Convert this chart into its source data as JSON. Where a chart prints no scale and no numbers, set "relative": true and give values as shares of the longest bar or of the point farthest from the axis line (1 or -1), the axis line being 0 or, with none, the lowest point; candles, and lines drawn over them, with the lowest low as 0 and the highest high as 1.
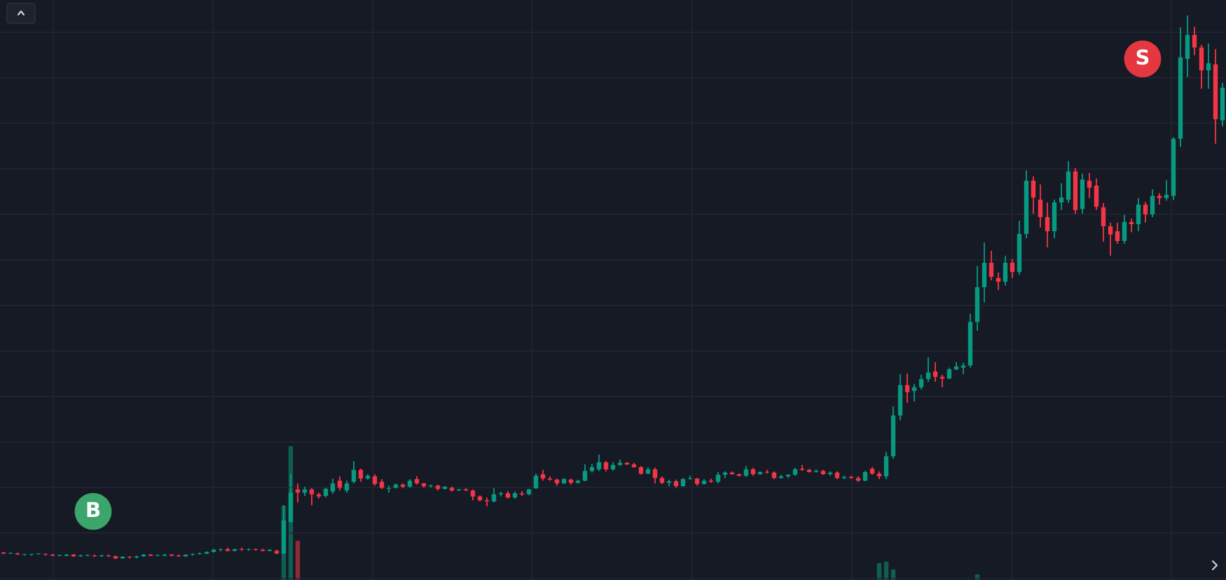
{
  "chart_data": [
    {
      "type": "candlestick",
      "relative": true,
      "grid": true,
      "categories": [
        null,
        null,
        null,
        null,
        null,
        null,
        null,
        null,
        null,
        null,
        null,
        null,
        null,
        null,
        null,
        null,
        null,
        null,
        null,
        null,
        null,
        null,
        null,
        null,
        null,
        null,
        null,
        null,
        null,
        null,
        null,
        null,
        null,
        null,
        null,
        null,
        null,
        null,
        null,
        null,
        null,
        null,
        null,
        null,
        null,
        null,
        null,
        null,
        null,
        null,
        null,
        null,
        null,
        null,
        null,
        null,
        null,
        null,
        null,
        null,
        null,
        null,
        null,
        null,
        null,
        null,
        null,
        null,
        null,
        null,
        null,
        null,
        null,
        null,
        null,
        null,
        null,
        null,
        null,
        null,
        null,
        null,
        null,
        null,
        null,
        null,
        null,
        null,
        null,
        null,
        null,
        null,
        null,
        null,
        null,
        null,
        null,
        null,
        null,
        null,
        null,
        null,
        null,
        null,
        null,
        null,
        null,
        null,
        null,
        null,
        null,
        null,
        null,
        null,
        null,
        null,
        null,
        null,
        null,
        null,
        null,
        null,
        null,
        null,
        null,
        null,
        null,
        null,
        null,
        null,
        null,
        null,
        null,
        null,
        null,
        null,
        null,
        null,
        null,
        null,
        null,
        null,
        null,
        null,
        null,
        null,
        null,
        null,
        null,
        null,
        null,
        null,
        null,
        null,
        null,
        null,
        null,
        null,
        null,
        null,
        null,
        null,
        null,
        null,
        null,
        null,
        null,
        null,
        null,
        null,
        null,
        null,
        null,
        null,
        null
      ],
      "annotations": [
        "B",
        "S"
      ],
      "ohlc": [
        [
          0.012,
          0.013,
          0.009,
          0.01
        ],
        [
          0.01,
          0.012,
          0.009,
          0.01
        ],
        [
          0.01,
          0.012,
          0.008,
          0.008
        ],
        [
          0.008,
          0.009,
          0.006,
          0.008
        ],
        [
          0.008,
          0.009,
          0.006,
          0.009
        ],
        [
          0.009,
          0.01,
          0.008,
          0.009
        ],
        [
          0.009,
          0.01,
          0.006,
          0.008
        ],
        [
          0.008,
          0.009,
          0.005,
          0.006
        ],
        [
          0.006,
          0.008,
          0.005,
          0.006
        ],
        [
          0.006,
          0.009,
          0.005,
          0.008
        ],
        [
          0.008,
          0.009,
          0.004,
          0.005
        ],
        [
          0.005,
          0.008,
          0.004,
          0.006
        ],
        [
          0.006,
          0.008,
          0.005,
          0.006
        ],
        [
          0.006,
          0.008,
          0.004,
          0.005
        ],
        [
          0.005,
          0.008,
          0.004,
          0.006
        ],
        [
          0.006,
          0.008,
          0.004,
          0.005
        ],
        [
          0.005,
          0.006,
          0,
          0.001
        ],
        [
          0.001,
          0.005,
          0.001,
          0.004
        ],
        [
          0.004,
          0.005,
          0.001,
          0.003
        ],
        [
          0.003,
          0.006,
          0.001,
          0.005
        ],
        [
          0.005,
          0.009,
          0.004,
          0.008
        ],
        [
          0.008,
          0.009,
          0.005,
          0.006
        ],
        [
          0.006,
          0.008,
          0.005,
          0.006
        ],
        [
          0.006,
          0.009,
          0.005,
          0.008
        ],
        [
          0.008,
          0.009,
          0.005,
          0.006
        ],
        [
          0.006,
          0.008,
          0.004,
          0.005
        ],
        [
          0.005,
          0.008,
          0.004,
          0.008
        ],
        [
          0.008,
          0.01,
          0.006,
          0.009
        ],
        [
          0.009,
          0.012,
          0.008,
          0.01
        ],
        [
          0.01,
          0.014,
          0.009,
          0.013
        ],
        [
          0.013,
          0.019,
          0.012,
          0.017
        ],
        [
          0.017,
          0.019,
          0.014,
          0.018
        ],
        [
          0.018,
          0.021,
          0.014,
          0.015
        ],
        [
          0.015,
          0.019,
          0.014,
          0.018
        ],
        [
          0.018,
          0.021,
          0.015,
          0.017
        ],
        [
          0.017,
          0.019,
          0.015,
          0.018
        ],
        [
          0.018,
          0.019,
          0.015,
          0.017
        ],
        [
          0.017,
          0.019,
          0.014,
          0.015
        ],
        [
          0.015,
          0.018,
          0.014,
          0.017
        ],
        [
          0.015,
          0.017,
          0.009,
          0.01
        ],
        [
          0.01,
          0.099,
          0.009,
          0.071
        ],
        [
          0.068,
          0.156,
          0.067,
          0.122
        ],
        [
          0.128,
          0.139,
          0.104,
          0.122
        ],
        [
          0.122,
          0.133,
          0.116,
          0.128
        ],
        [
          0.128,
          0.13,
          0.099,
          0.119
        ],
        [
          0.119,
          0.122,
          0.111,
          0.115
        ],
        [
          0.116,
          0.131,
          0.113,
          0.129
        ],
        [
          0.124,
          0.148,
          0.12,
          0.139
        ],
        [
          0.144,
          0.152,
          0.126,
          0.131
        ],
        [
          0.126,
          0.144,
          0.122,
          0.139
        ],
        [
          0.142,
          0.18,
          0.139,
          0.164
        ],
        [
          0.164,
          0.166,
          0.142,
          0.148
        ],
        [
          0.148,
          0.156,
          0.146,
          0.153
        ],
        [
          0.152,
          0.156,
          0.135,
          0.138
        ],
        [
          0.142,
          0.147,
          0.129,
          0.131
        ],
        [
          0.129,
          0.135,
          0.122,
          0.13
        ],
        [
          0.131,
          0.139,
          0.13,
          0.137
        ],
        [
          0.137,
          0.139,
          0.13,
          0.133
        ],
        [
          0.133,
          0.147,
          0.131,
          0.144
        ],
        [
          0.147,
          0.152,
          0.137,
          0.139
        ],
        [
          0.139,
          0.14,
          0.131,
          0.134
        ],
        [
          0.134,
          0.137,
          0.131,
          0.135
        ],
        [
          0.135,
          0.137,
          0.126,
          0.129
        ],
        [
          0.129,
          0.134,
          0.128,
          0.133
        ],
        [
          0.131,
          0.133,
          0.124,
          0.126
        ],
        [
          0.126,
          0.129,
          0.125,
          0.128
        ],
        [
          0.128,
          0.13,
          0.125,
          0.126
        ],
        [
          0.126,
          0.128,
          0.108,
          0.115
        ],
        [
          0.115,
          0.117,
          0.106,
          0.108
        ],
        [
          0.108,
          0.113,
          0.097,
          0.106
        ],
        [
          0.106,
          0.13,
          0.104,
          0.119
        ],
        [
          0.119,
          0.124,
          0.115,
          0.121
        ],
        [
          0.121,
          0.125,
          0.111,
          0.113
        ],
        [
          0.113,
          0.124,
          0.111,
          0.121
        ],
        [
          0.121,
          0.125,
          0.116,
          0.119
        ],
        [
          0.119,
          0.129,
          0.117,
          0.128
        ],
        [
          0.13,
          0.157,
          0.129,
          0.153
        ],
        [
          0.156,
          0.164,
          0.144,
          0.148
        ],
        [
          0.148,
          0.152,
          0.144,
          0.146
        ],
        [
          0.146,
          0.148,
          0.135,
          0.139
        ],
        [
          0.139,
          0.149,
          0.138,
          0.147
        ],
        [
          0.146,
          0.148,
          0.137,
          0.14
        ],
        [
          0.14,
          0.146,
          0.139,
          0.144
        ],
        [
          0.144,
          0.174,
          0.143,
          0.162
        ],
        [
          0.162,
          0.175,
          0.159,
          0.169
        ],
        [
          0.165,
          0.192,
          0.162,
          0.178
        ],
        [
          0.178,
          0.18,
          0.161,
          0.165
        ],
        [
          0.165,
          0.178,
          0.162,
          0.173
        ],
        [
          0.173,
          0.183,
          0.171,
          0.177
        ],
        [
          0.177,
          0.178,
          0.173,
          0.174
        ],
        [
          0.174,
          0.177,
          0.168,
          0.169
        ],
        [
          0.169,
          0.171,
          0.155,
          0.157
        ],
        [
          0.157,
          0.169,
          0.156,
          0.165
        ],
        [
          0.165,
          0.168,
          0.139,
          0.149
        ],
        [
          0.149,
          0.152,
          0.138,
          0.14
        ],
        [
          0.14,
          0.146,
          0.134,
          0.143
        ],
        [
          0.143,
          0.146,
          0.131,
          0.134
        ],
        [
          0.134,
          0.149,
          0.133,
          0.147
        ],
        [
          0.147,
          0.153,
          0.146,
          0.148
        ],
        [
          0.148,
          0.149,
          0.135,
          0.138
        ],
        [
          0.138,
          0.147,
          0.137,
          0.144
        ],
        [
          0.144,
          0.148,
          0.14,
          0.142
        ],
        [
          0.142,
          0.16,
          0.139,
          0.155
        ],
        [
          0.155,
          0.161,
          0.149,
          0.159
        ],
        [
          0.159,
          0.161,
          0.155,
          0.156
        ],
        [
          0.156,
          0.157,
          0.152,
          0.153
        ],
        [
          0.153,
          0.171,
          0.151,
          0.165
        ],
        [
          0.165,
          0.168,
          0.153,
          0.156
        ],
        [
          0.156,
          0.161,
          0.155,
          0.16
        ],
        [
          0.16,
          0.164,
          0.157,
          0.159
        ],
        [
          0.159,
          0.161,
          0.147,
          0.149
        ],
        [
          0.149,
          0.155,
          0.148,
          0.152
        ],
        [
          0.152,
          0.156,
          0.149,
          0.155
        ],
        [
          0.155,
          0.168,
          0.153,
          0.165
        ],
        [
          0.166,
          0.173,
          0.162,
          0.164
        ],
        [
          0.164,
          0.166,
          0.159,
          0.16
        ],
        [
          0.16,
          0.165,
          0.159,
          0.162
        ],
        [
          0.162,
          0.164,
          0.155,
          0.156
        ],
        [
          0.156,
          0.161,
          0.153,
          0.159
        ],
        [
          0.159,
          0.161,
          0.147,
          0.149
        ],
        [
          0.149,
          0.153,
          0.147,
          0.151
        ],
        [
          0.151,
          0.153,
          0.148,
          0.149
        ],
        [
          0.149,
          0.152,
          0.142,
          0.144
        ],
        [
          0.144,
          0.162,
          0.143,
          0.16
        ],
        [
          0.166,
          0.169,
          0.155,
          0.157
        ],
        [
          0.157,
          0.161,
          0.147,
          0.152
        ],
        [
          0.152,
          0.197,
          0.147,
          0.189
        ],
        [
          0.189,
          0.281,
          0.184,
          0.264
        ],
        [
          0.264,
          0.34,
          0.255,
          0.32
        ],
        [
          0.32,
          0.341,
          0.287,
          0.307
        ],
        [
          0.309,
          0.322,
          0.29,
          0.316
        ],
        [
          0.316,
          0.339,
          0.312,
          0.331
        ],
        [
          0.331,
          0.371,
          0.326,
          0.343
        ],
        [
          0.345,
          0.362,
          0.326,
          0.335
        ],
        [
          0.335,
          0.339,
          0.316,
          0.332
        ],
        [
          0.332,
          0.352,
          0.331,
          0.349
        ],
        [
          0.349,
          0.362,
          0.347,
          0.354
        ],
        [
          0.352,
          0.361,
          0.34,
          0.356
        ],
        [
          0.356,
          0.451,
          0.352,
          0.436
        ],
        [
          0.436,
          0.539,
          0.42,
          0.5
        ],
        [
          0.5,
          0.582,
          0.472,
          0.545
        ],
        [
          0.545,
          0.567,
          0.513,
          0.519
        ],
        [
          0.517,
          0.527,
          0.495,
          0.51
        ],
        [
          0.51,
          0.558,
          0.503,
          0.545
        ],
        [
          0.545,
          0.552,
          0.517,
          0.528
        ],
        [
          0.528,
          0.622,
          0.523,
          0.598
        ],
        [
          0.598,
          0.715,
          0.59,
          0.696
        ],
        [
          0.696,
          0.704,
          0.635,
          0.665
        ],
        [
          0.661,
          0.689,
          0.61,
          0.629
        ],
        [
          0.629,
          0.656,
          0.573,
          0.603
        ],
        [
          0.603,
          0.661,
          0.59,
          0.656
        ],
        [
          0.656,
          0.691,
          0.642,
          0.665
        ],
        [
          0.661,
          0.732,
          0.655,
          0.713
        ],
        [
          0.713,
          0.719,
          0.635,
          0.642
        ],
        [
          0.644,
          0.709,
          0.635,
          0.698
        ],
        [
          0.696,
          0.71,
          0.664,
          0.683
        ],
        [
          0.687,
          0.7,
          0.642,
          0.648
        ],
        [
          0.647,
          0.655,
          0.584,
          0.612
        ],
        [
          0.612,
          0.619,
          0.558,
          0.597
        ],
        [
          0.603,
          0.619,
          0.58,
          0.585
        ],
        [
          0.585,
          0.633,
          0.58,
          0.62
        ],
        [
          0.62,
          0.626,
          0.601,
          0.616
        ],
        [
          0.616,
          0.664,
          0.603,
          0.652
        ],
        [
          0.652,
          0.657,
          0.619,
          0.634
        ],
        [
          0.634,
          0.68,
          0.629,
          0.668
        ],
        [
          0.668,
          0.673,
          0.652,
          0.664
        ],
        [
          0.664,
          0.697,
          0.659,
          0.67
        ],
        [
          0.668,
          0.776,
          0.66,
          0.773
        ],
        [
          0.773,
          0.978,
          0.758,
          0.923
        ],
        [
          0.92,
          1,
          0.887,
          0.964
        ],
        [
          0.964,
          0.979,
          0.927,
          0.941
        ],
        [
          0.941,
          0.946,
          0.865,
          0.899
        ],
        [
          0.899,
          0.948,
          0.865,
          0.912
        ],
        [
          0.91,
          0.938,
          0.764,
          0.809
        ],
        [
          0.807,
          0.876,
          0.796,
          0.867
        ]
      ],
      "colors": [
        "#f23645",
        "#089981",
        "#f23645",
        "#089981",
        "#089981",
        "#089981",
        "#f23645",
        "#f23645",
        "#089981",
        "#089981",
        "#f23645",
        "#089981",
        "#089981",
        "#f23645",
        "#089981",
        "#f23645",
        "#f23645",
        "#089981",
        "#f23645",
        "#089981",
        "#089981",
        "#f23645",
        "#089981",
        "#089981",
        "#f23645",
        "#f23645",
        "#089981",
        "#089981",
        "#089981",
        "#089981",
        "#089981",
        "#089981",
        "#f23645",
        "#089981",
        "#f23645",
        "#089981",
        "#f23645",
        "#f23645",
        "#089981",
        "#f23645",
        "#089981",
        "#089981",
        "#f23645",
        "#089981",
        "#f23645",
        "#f23645",
        "#089981",
        "#089981",
        "#f23645",
        "#089981",
        "#089981",
        "#f23645",
        "#089981",
        "#f23645",
        "#f23645",
        "#089981",
        "#089981",
        "#f23645",
        "#089981",
        "#f23645",
        "#f23645",
        "#089981",
        "#f23645",
        "#089981",
        "#f23645",
        "#089981",
        "#f23645",
        "#f23645",
        "#f23645",
        "#f23645",
        "#089981",
        "#089981",
        "#f23645",
        "#089981",
        "#f23645",
        "#089981",
        "#089981",
        "#f23645",
        "#f23645",
        "#f23645",
        "#089981",
        "#f23645",
        "#089981",
        "#089981",
        "#089981",
        "#089981",
        "#f23645",
        "#089981",
        "#089981",
        "#f23645",
        "#f23645",
        "#f23645",
        "#089981",
        "#f23645",
        "#f23645",
        "#089981",
        "#f23645",
        "#089981",
        "#089981",
        "#f23645",
        "#089981",
        "#f23645",
        "#089981",
        "#089981",
        "#f23645",
        "#f23645",
        "#089981",
        "#f23645",
        "#089981",
        "#f23645",
        "#f23645",
        "#089981",
        "#089981",
        "#089981",
        "#f23645",
        "#f23645",
        "#089981",
        "#f23645",
        "#089981",
        "#f23645",
        "#089981",
        "#f23645",
        "#f23645",
        "#089981",
        "#f23645",
        "#f23645",
        "#089981",
        "#089981",
        "#089981",
        "#f23645",
        "#089981",
        "#089981",
        "#089981",
        "#f23645",
        "#f23645",
        "#089981",
        "#089981",
        "#089981",
        "#089981",
        "#089981",
        "#089981",
        "#f23645",
        "#f23645",
        "#089981",
        "#f23645",
        "#089981",
        "#089981",
        "#f23645",
        "#f23645",
        "#f23645",
        "#089981",
        "#089981",
        "#089981",
        "#f23645",
        "#089981",
        "#f23645",
        "#f23645",
        "#f23645",
        "#f23645",
        "#f23645",
        "#089981",
        "#f23645",
        "#089981",
        "#f23645",
        "#089981",
        "#f23645",
        "#089981",
        "#089981",
        "#089981",
        "#089981",
        "#f23645",
        "#f23645",
        "#089981",
        "#f23645",
        "#089981"
      ]
    },
    {
      "type": "bar",
      "relative": true,
      "categories": [
        null,
        null,
        null,
        null,
        null,
        null,
        null,
        null,
        null,
        null,
        null,
        null,
        null,
        null,
        null,
        null,
        null,
        null,
        null,
        null,
        null,
        null,
        null,
        null,
        null,
        null,
        null,
        null,
        null,
        null,
        null,
        null,
        null,
        null,
        null,
        null,
        null,
        null,
        null,
        null,
        null,
        null,
        null,
        null,
        null,
        null,
        null,
        null,
        null,
        null,
        null,
        null,
        null,
        null,
        null,
        null,
        null,
        null,
        null,
        null,
        null,
        null,
        null,
        null,
        null,
        null,
        null,
        null,
        null,
        null,
        null,
        null,
        null,
        null,
        null,
        null,
        null,
        null,
        null,
        null,
        null,
        null,
        null,
        null,
        null,
        null,
        null,
        null,
        null,
        null,
        null,
        null,
        null,
        null,
        null,
        null,
        null,
        null,
        null,
        null,
        null,
        null,
        null,
        null,
        null,
        null,
        null,
        null,
        null,
        null,
        null,
        null,
        null,
        null,
        null,
        null,
        null,
        null,
        null,
        null,
        null,
        null,
        null,
        null,
        null,
        null,
        null,
        null,
        null,
        null,
        null,
        null,
        null,
        null,
        null,
        null,
        null,
        null,
        null,
        null,
        null,
        null,
        null,
        null,
        null,
        null,
        null,
        null,
        null,
        null,
        null,
        null,
        null,
        null,
        null,
        null,
        null,
        null,
        null,
        null,
        null,
        null,
        null,
        null,
        null,
        null,
        null,
        null,
        null,
        null,
        null,
        null,
        null,
        null,
        null
      ],
      "values": [
        null,
        null,
        null,
        null,
        null,
        null,
        null,
        null,
        null,
        null,
        null,
        null,
        null,
        null,
        null,
        null,
        null,
        null,
        null,
        null,
        null,
        null,
        null,
        null,
        null,
        null,
        null,
        null,
        null,
        null,
        null,
        null,
        null,
        null,
        null,
        null,
        null,
        null,
        null,
        null,
        0.555,
        1,
        0.293,
        null,
        null,
        null,
        null,
        null,
        null,
        null,
        null,
        null,
        null,
        null,
        null,
        null,
        null,
        null,
        null,
        null,
        null,
        null,
        null,
        null,
        null,
        null,
        null,
        null,
        null,
        null,
        null,
        null,
        null,
        null,
        null,
        null,
        null,
        null,
        null,
        null,
        null,
        null,
        null,
        null,
        null,
        null,
        null,
        null,
        null,
        null,
        null,
        null,
        null,
        null,
        null,
        null,
        null,
        null,
        null,
        null,
        null,
        null,
        null,
        null,
        null,
        null,
        null,
        null,
        null,
        null,
        null,
        null,
        null,
        null,
        null,
        null,
        null,
        null,
        null,
        null,
        null,
        null,
        null,
        null,
        null,
        0.126,
        0.136,
        0.079,
        null,
        null,
        null,
        null,
        null,
        null,
        null,
        null,
        null,
        null,
        null,
        0.042,
        null,
        null,
        null,
        null,
        null,
        null,
        null,
        null,
        null,
        null,
        null,
        null,
        null,
        null,
        null,
        null,
        null,
        null,
        null,
        null,
        null,
        null,
        null,
        null,
        null,
        null,
        null,
        null,
        null,
        null,
        null,
        null,
        null,
        null,
        null
      ],
      "colors": [
        null,
        null,
        null,
        null,
        null,
        null,
        null,
        null,
        null,
        null,
        null,
        null,
        null,
        null,
        null,
        null,
        null,
        null,
        null,
        null,
        null,
        null,
        null,
        null,
        null,
        null,
        null,
        null,
        null,
        null,
        null,
        null,
        null,
        null,
        null,
        null,
        null,
        null,
        null,
        null,
        "#0e5f52",
        "#0e5f52",
        "#8a2c35",
        null,
        null,
        null,
        null,
        null,
        null,
        null,
        null,
        null,
        null,
        null,
        null,
        null,
        null,
        null,
        null,
        null,
        null,
        null,
        null,
        null,
        null,
        null,
        null,
        null,
        null,
        null,
        null,
        null,
        null,
        null,
        null,
        null,
        null,
        null,
        null,
        null,
        null,
        null,
        null,
        null,
        null,
        null,
        null,
        null,
        null,
        null,
        null,
        null,
        null,
        null,
        null,
        null,
        null,
        null,
        null,
        null,
        null,
        null,
        null,
        null,
        null,
        null,
        null,
        null,
        null,
        null,
        null,
        null,
        null,
        null,
        null,
        null,
        null,
        null,
        null,
        null,
        null,
        null,
        null,
        null,
        null,
        "#0e5f52",
        "#0e5f52",
        "#0e5f52",
        null,
        null,
        null,
        null,
        null,
        null,
        null,
        null,
        null,
        null,
        null,
        "#0e5f52",
        null,
        null,
        null,
        null,
        null,
        null,
        null,
        null,
        null,
        null,
        null,
        null,
        null,
        null,
        null,
        null,
        null,
        null,
        null,
        null,
        null,
        null,
        null,
        null,
        null,
        null,
        null,
        null,
        null,
        null,
        null,
        null,
        null,
        null,
        null
      ]
    }
  ]
}
